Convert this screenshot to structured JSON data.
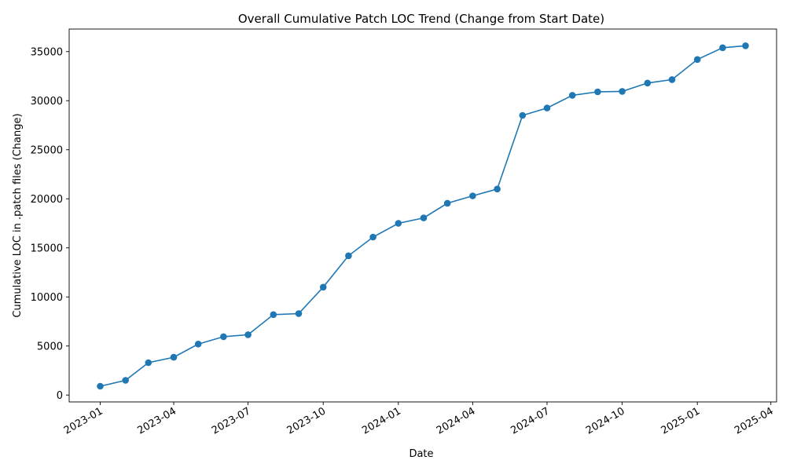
{
  "chart_data": {
    "type": "line",
    "title": "Overall Cumulative Patch LOC Trend (Change from Start Date)",
    "xlabel": "Date",
    "ylabel": "Cumulative LOC in .patch files (Change)",
    "x_tick_labels": [
      "2023-01",
      "2023-04",
      "2023-07",
      "2023-10",
      "2024-01",
      "2024-04",
      "2024-07",
      "2024-10",
      "2025-01",
      "2025-04"
    ],
    "y_ticks": [
      0,
      5000,
      10000,
      15000,
      20000,
      25000,
      30000,
      35000
    ],
    "ylim": [
      -700,
      37300
    ],
    "xlim": [
      "2022-11-24",
      "2025-04-08"
    ],
    "grid": false,
    "color": "#1f77b4",
    "series": [
      {
        "x": [
          "2023-01-01",
          "2023-02-01",
          "2023-03-01",
          "2023-04-01",
          "2023-05-01",
          "2023-06-01",
          "2023-07-01",
          "2023-08-01",
          "2023-09-01",
          "2023-10-01",
          "2023-11-01",
          "2023-12-01",
          "2024-01-01",
          "2024-02-01",
          "2024-03-01",
          "2024-04-01",
          "2024-05-01",
          "2024-06-01",
          "2024-07-01",
          "2024-08-01",
          "2024-09-01",
          "2024-10-01",
          "2024-11-01",
          "2024-12-01",
          "2025-01-01",
          "2025-02-01",
          "2025-03-01"
        ],
        "values": [
          900,
          1500,
          3300,
          3850,
          5200,
          5950,
          6150,
          8200,
          8300,
          11000,
          14200,
          16100,
          17500,
          18050,
          19550,
          20300,
          21000,
          28500,
          29250,
          30550,
          30900,
          30950,
          31800,
          32150,
          34200,
          35400,
          35600
        ]
      }
    ]
  }
}
